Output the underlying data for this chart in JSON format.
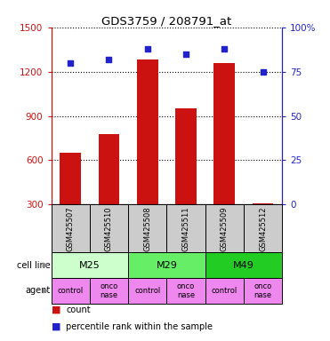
{
  "title": "GDS3759 / 208791_at",
  "samples": [
    "GSM425507",
    "GSM425510",
    "GSM425508",
    "GSM425511",
    "GSM425509",
    "GSM425512"
  ],
  "counts": [
    650,
    780,
    1280,
    950,
    1260,
    310
  ],
  "percentiles": [
    80,
    82,
    88,
    85,
    88,
    75
  ],
  "ylim_left": [
    300,
    1500
  ],
  "ylim_right": [
    0,
    100
  ],
  "yticks_left": [
    300,
    600,
    900,
    1200,
    1500
  ],
  "yticks_right": [
    0,
    25,
    50,
    75,
    100
  ],
  "ytick_labels_right": [
    "0",
    "25",
    "50",
    "75",
    "100%"
  ],
  "bar_color": "#cc1111",
  "dot_color": "#2222cc",
  "cell_lines": [
    {
      "label": "M25",
      "start": 0,
      "end": 2,
      "color": "#ccffcc"
    },
    {
      "label": "M29",
      "start": 2,
      "end": 4,
      "color": "#66ee66"
    },
    {
      "label": "M49",
      "start": 4,
      "end": 6,
      "color": "#22cc22"
    }
  ],
  "agents": [
    "control",
    "onco\nnase",
    "control",
    "onco\nnase",
    "control",
    "onco\nnase"
  ],
  "agent_color": "#ee88ee",
  "cell_line_label": "cell line",
  "agent_label": "agent",
  "legend_count_color": "#cc1111",
  "legend_pct_color": "#2222cc",
  "legend_count_label": "count",
  "legend_pct_label": "percentile rank within the sample",
  "bg_sample_color": "#cccccc"
}
